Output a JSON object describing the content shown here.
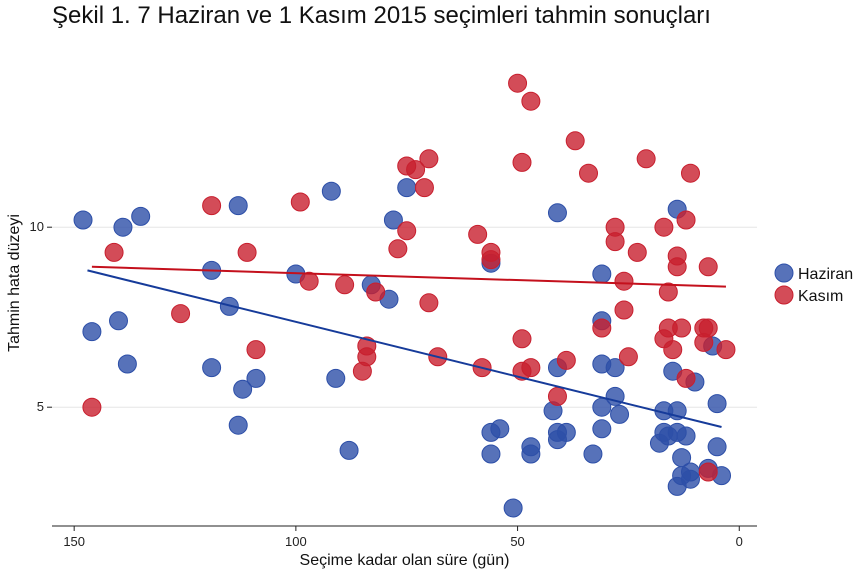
{
  "chart_data": {
    "type": "scatter",
    "title": "Şekil 1. 7 Haziran ve 1 Kasım 2015 seçimleri tahmin sonuçları",
    "xlabel": "Seçime kadar olan süre (gün)",
    "ylabel": "Tahmin hata düzeyi",
    "xlim": [
      155,
      -4
    ],
    "ylim": [
      1.7,
      15.2
    ],
    "x_ticks": [
      150,
      100,
      50,
      0
    ],
    "y_ticks": [
      5,
      10
    ],
    "grid": "horizontal",
    "legend": "right",
    "series": [
      {
        "name": "Haziran",
        "color": "#2d4fa8",
        "points": [
          [
            148,
            10.2
          ],
          [
            146,
            7.1
          ],
          [
            140,
            7.4
          ],
          [
            139,
            10.0
          ],
          [
            138,
            6.2
          ],
          [
            135,
            10.3
          ],
          [
            119,
            8.8
          ],
          [
            119,
            6.1
          ],
          [
            115,
            7.8
          ],
          [
            113,
            10.6
          ],
          [
            113,
            4.5
          ],
          [
            112,
            5.5
          ],
          [
            109,
            5.8
          ],
          [
            100,
            8.7
          ],
          [
            92,
            11.0
          ],
          [
            91,
            5.8
          ],
          [
            88,
            3.8
          ],
          [
            83,
            8.4
          ],
          [
            79,
            8.0
          ],
          [
            78,
            10.2
          ],
          [
            75,
            11.1
          ],
          [
            56,
            9.0
          ],
          [
            56,
            4.3
          ],
          [
            54,
            4.4
          ],
          [
            56,
            3.7
          ],
          [
            51,
            2.2
          ],
          [
            47,
            3.9
          ],
          [
            47,
            3.7
          ],
          [
            42,
            4.9
          ],
          [
            41,
            10.4
          ],
          [
            41,
            6.1
          ],
          [
            41,
            4.3
          ],
          [
            41,
            4.1
          ],
          [
            39,
            4.3
          ],
          [
            33,
            3.7
          ],
          [
            31,
            8.7
          ],
          [
            31,
            7.4
          ],
          [
            31,
            6.2
          ],
          [
            31,
            5.0
          ],
          [
            31,
            4.4
          ],
          [
            28,
            6.1
          ],
          [
            28,
            5.3
          ],
          [
            27,
            4.8
          ],
          [
            18,
            4.0
          ],
          [
            17,
            4.9
          ],
          [
            17,
            4.3
          ],
          [
            16,
            4.2
          ],
          [
            15,
            6.0
          ],
          [
            14,
            4.9
          ],
          [
            14,
            4.3
          ],
          [
            14,
            10.5
          ],
          [
            14,
            2.8
          ],
          [
            13,
            3.6
          ],
          [
            13,
            3.1
          ],
          [
            12,
            4.2
          ],
          [
            11,
            3.0
          ],
          [
            11,
            3.2
          ],
          [
            10,
            5.7
          ],
          [
            7,
            3.3
          ],
          [
            6,
            6.7
          ],
          [
            5,
            5.1
          ],
          [
            5,
            3.9
          ],
          [
            4,
            3.1
          ]
        ]
      },
      {
        "name": "Kasım",
        "color": "#c81f2e",
        "points": [
          [
            146,
            5.0
          ],
          [
            141,
            9.3
          ],
          [
            126,
            7.6
          ],
          [
            119,
            10.6
          ],
          [
            111,
            9.3
          ],
          [
            109,
            6.6
          ],
          [
            99,
            10.7
          ],
          [
            97,
            8.5
          ],
          [
            89,
            8.4
          ],
          [
            85,
            6.0
          ],
          [
            84,
            6.7
          ],
          [
            84,
            6.4
          ],
          [
            82,
            8.2
          ],
          [
            77,
            9.4
          ],
          [
            75,
            9.9
          ],
          [
            75,
            11.7
          ],
          [
            73,
            11.6
          ],
          [
            71,
            11.1
          ],
          [
            70,
            11.9
          ],
          [
            70,
            7.9
          ],
          [
            68,
            6.4
          ],
          [
            59,
            9.8
          ],
          [
            58,
            6.1
          ],
          [
            56,
            9.1
          ],
          [
            56,
            9.3
          ],
          [
            50,
            14.0
          ],
          [
            49,
            11.8
          ],
          [
            49,
            6.9
          ],
          [
            49,
            6.0
          ],
          [
            47,
            13.5
          ],
          [
            47,
            6.1
          ],
          [
            41,
            5.3
          ],
          [
            39,
            6.3
          ],
          [
            37,
            12.4
          ],
          [
            34,
            11.5
          ],
          [
            31,
            7.2
          ],
          [
            28,
            10.0
          ],
          [
            28,
            9.6
          ],
          [
            26,
            8.5
          ],
          [
            26,
            7.7
          ],
          [
            25,
            6.4
          ],
          [
            23,
            9.3
          ],
          [
            21,
            11.9
          ],
          [
            17,
            10.0
          ],
          [
            17,
            6.9
          ],
          [
            16,
            8.2
          ],
          [
            16,
            7.2
          ],
          [
            15,
            6.6
          ],
          [
            14,
            9.2
          ],
          [
            14,
            8.9
          ],
          [
            13,
            7.2
          ],
          [
            12,
            10.2
          ],
          [
            12,
            5.8
          ],
          [
            11,
            11.5
          ],
          [
            8,
            7.2
          ],
          [
            8,
            6.8
          ],
          [
            7,
            7.2
          ],
          [
            7,
            3.2
          ],
          [
            7,
            8.9
          ],
          [
            3,
            6.6
          ]
        ]
      }
    ],
    "trend_lines": [
      {
        "name": "Haziran",
        "x": [
          147,
          4
        ],
        "y": [
          8.8,
          4.45
        ]
      },
      {
        "name": "Kasım",
        "x": [
          146,
          3
        ],
        "y": [
          8.9,
          8.35
        ]
      }
    ]
  }
}
